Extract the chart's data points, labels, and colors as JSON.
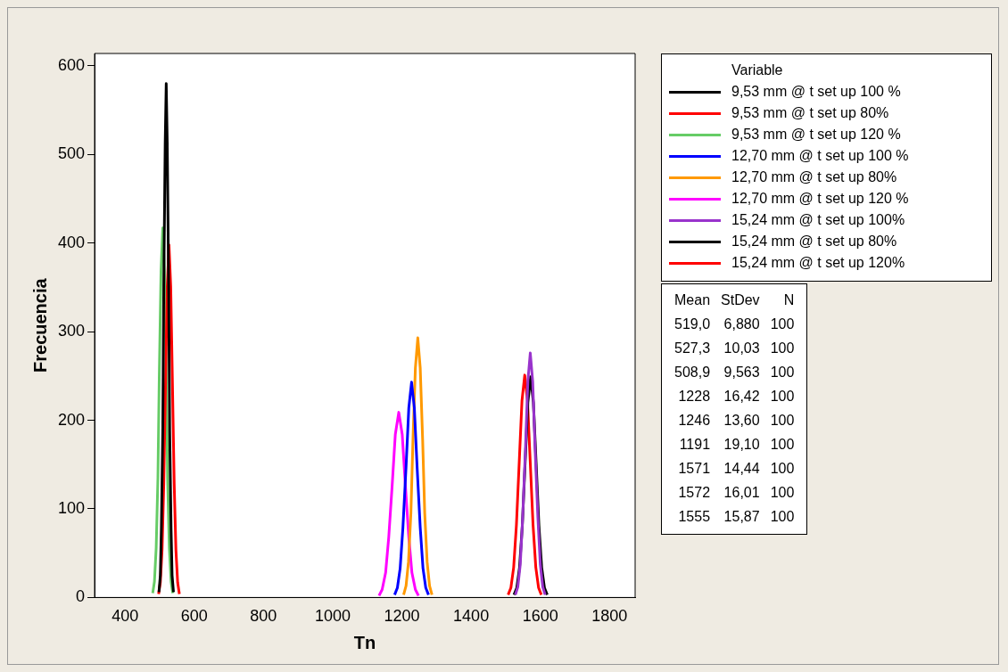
{
  "chart_data": {
    "type": "line",
    "xlabel": "Tn",
    "ylabel": "Frecuencia",
    "legend_title": "Variable",
    "legend": "right",
    "grid": false,
    "marker": "none",
    "xlim": [
      312,
      1874
    ],
    "xticks": [
      400,
      600,
      800,
      1000,
      1200,
      1400,
      1600,
      1800
    ],
    "ylim": [
      0,
      614
    ],
    "yticks": [
      0,
      100,
      200,
      300,
      400,
      500,
      600
    ],
    "series": [
      {
        "name": "9,53 mm @ t set up 100 %",
        "color": "#000000",
        "x": [
          498,
          502,
          505,
          509,
          512,
          516,
          519,
          522,
          526,
          529,
          533,
          536,
          540
        ],
        "values": [
          6,
          25,
          78,
          188,
          352,
          512,
          580,
          512,
          352,
          188,
          78,
          25,
          6
        ]
      },
      {
        "name": "9,53 mm @ t set up 80%",
        "color": "#ff0000",
        "x": [
          497,
          502,
          507,
          512,
          517,
          522,
          527,
          532,
          537,
          542,
          547,
          552,
          557
        ],
        "values": [
          4,
          17,
          54,
          129,
          241,
          351,
          398,
          351,
          241,
          129,
          54,
          17,
          4
        ]
      },
      {
        "name": "9,53 mm @ t set up 120 %",
        "color": "#66cc66",
        "x": [
          480,
          485,
          490,
          495,
          499,
          504,
          509,
          514,
          519,
          523,
          528,
          533,
          538
        ],
        "values": [
          5,
          18,
          56,
          135,
          253,
          368,
          417,
          368,
          253,
          135,
          56,
          18,
          5
        ]
      },
      {
        "name": "12,70 mm @ t set up 100 %",
        "color": "#0000ff",
        "x": [
          1179,
          1187,
          1195,
          1203,
          1212,
          1220,
          1228,
          1236,
          1244,
          1253,
          1261,
          1269,
          1277
        ],
        "values": [
          3,
          11,
          33,
          79,
          147,
          214,
          243,
          214,
          147,
          79,
          33,
          11,
          3
        ]
      },
      {
        "name": "12,70 mm @ t set up 80%",
        "color": "#ff9900",
        "x": [
          1205,
          1212,
          1219,
          1226,
          1232,
          1239,
          1246,
          1253,
          1260,
          1266,
          1273,
          1280,
          1287
        ],
        "values": [
          3,
          13,
          40,
          95,
          178,
          259,
          293,
          259,
          178,
          95,
          40,
          13,
          3
        ]
      },
      {
        "name": "12,70 mm @ t set up 120 %",
        "color": "#ff00ff",
        "x": [
          1134,
          1143,
          1153,
          1162,
          1172,
          1181,
          1191,
          1201,
          1210,
          1220,
          1229,
          1239,
          1248
        ],
        "values": [
          2,
          9,
          28,
          68,
          127,
          184,
          209,
          184,
          127,
          68,
          28,
          9,
          2
        ]
      },
      {
        "name": "15,24 mm @ t set up 100%",
        "color": "#9933cc",
        "x": [
          1528,
          1535,
          1542,
          1549,
          1557,
          1564,
          1571,
          1578,
          1585,
          1593,
          1600,
          1607,
          1614
        ],
        "values": [
          3,
          12,
          37,
          90,
          167,
          244,
          276,
          244,
          167,
          90,
          37,
          12,
          3
        ]
      },
      {
        "name": "15,24 mm @ t set up 80%",
        "color": "#000000",
        "x": [
          1524,
          1532,
          1540,
          1548,
          1556,
          1564,
          1572,
          1580,
          1588,
          1596,
          1604,
          1612,
          1620
        ],
        "values": [
          3,
          11,
          34,
          81,
          151,
          220,
          249,
          220,
          151,
          81,
          34,
          11,
          3
        ]
      },
      {
        "name": "15,24 mm @ t set up 120%",
        "color": "#ff0000",
        "x": [
          1507,
          1515,
          1523,
          1531,
          1539,
          1547,
          1555,
          1563,
          1571,
          1579,
          1587,
          1595,
          1603
        ],
        "values": [
          3,
          11,
          34,
          82,
          152,
          222,
          251,
          222,
          152,
          82,
          34,
          11,
          3
        ]
      }
    ],
    "annotations": [
      "Mean StDev N",
      "519,0 6,880 100",
      "527,3 10,03 100",
      "508,9 9,563 100",
      "1228 16,42 100",
      "1246 13,60 100",
      "1191 19,10 100",
      "1571 14,44 100",
      "1572 16,01 100",
      "1555 15,87 100"
    ]
  }
}
